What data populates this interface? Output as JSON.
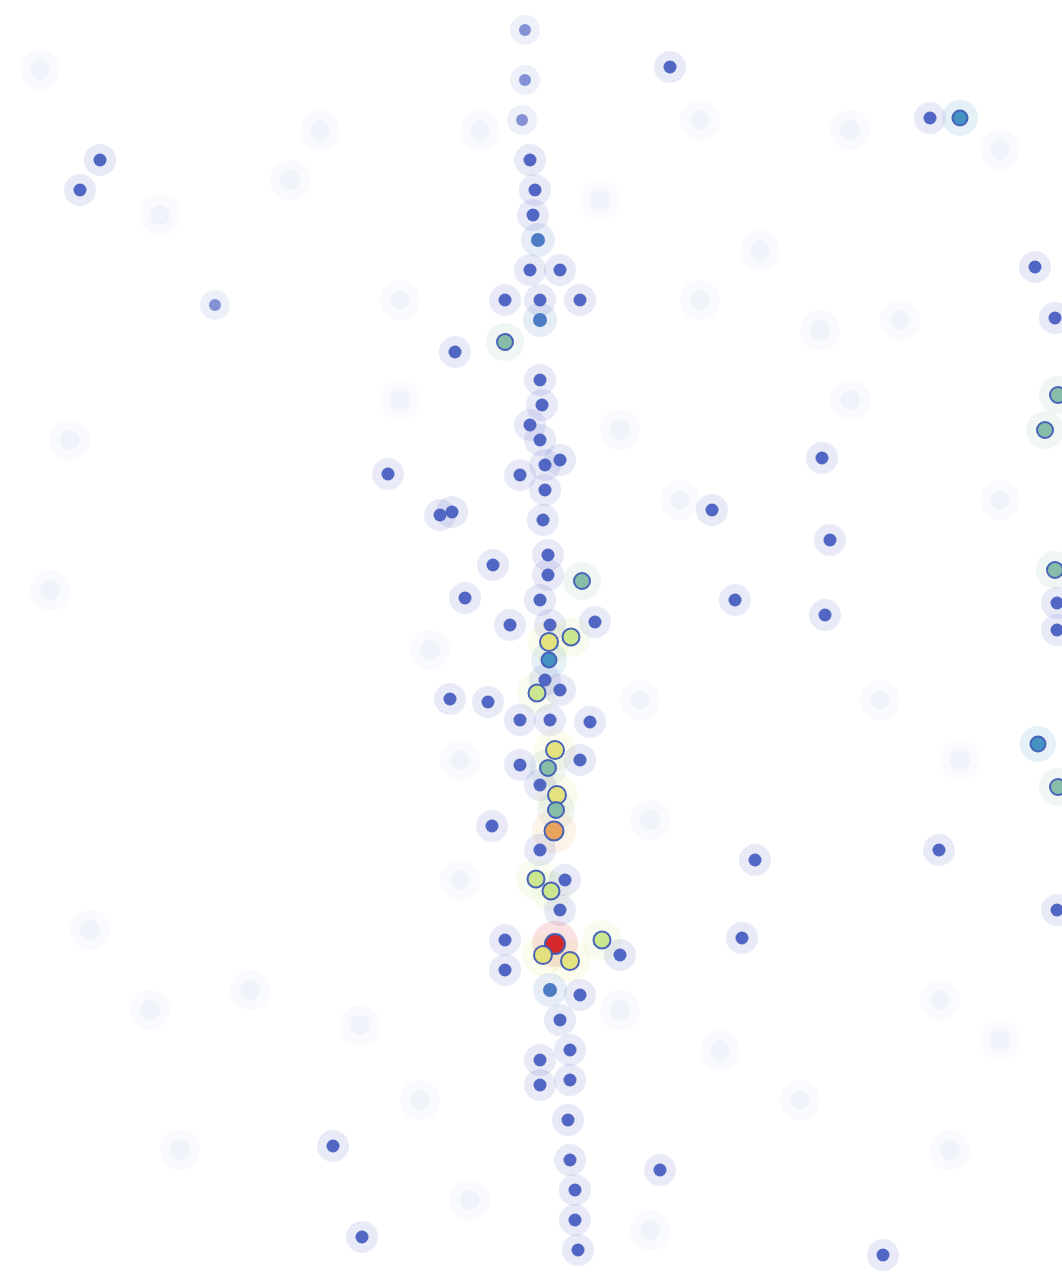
{
  "chart_data": {
    "type": "scatter",
    "tick_labels": false,
    "grid": false,
    "xlim": [
      0,
      1062
    ],
    "ylim": [
      1275,
      0
    ],
    "color_range": [
      0,
      10
    ],
    "x": [
      525,
      525,
      522,
      530,
      535,
      533,
      538,
      530,
      560,
      580,
      540,
      505,
      540,
      505,
      455,
      540,
      542,
      530,
      540,
      545,
      520,
      560,
      545,
      543,
      548,
      548,
      582,
      540,
      510,
      550,
      595,
      549,
      571,
      549,
      545,
      537,
      560,
      550,
      520,
      590,
      555,
      548,
      520,
      580,
      540,
      557,
      556,
      554,
      540,
      536,
      551,
      565,
      560,
      505,
      555,
      543,
      570,
      602,
      620,
      505,
      550,
      580,
      560,
      570,
      540,
      570,
      540,
      568,
      570,
      575,
      575,
      578,
      670,
      960,
      930,
      100,
      80,
      388,
      452,
      440,
      450,
      488,
      712,
      735,
      822,
      830,
      825,
      1035,
      1055,
      1058,
      1045,
      1055,
      1057,
      1057,
      1038,
      1058,
      939,
      755,
      742,
      333,
      362,
      660,
      883,
      215,
      1057,
      492,
      465,
      493,
      40,
      160,
      320,
      480,
      700,
      850,
      1000,
      760,
      820,
      850,
      620,
      680,
      70,
      50,
      880,
      960,
      150,
      250,
      360,
      940,
      1000,
      800,
      720,
      420,
      460,
      650,
      640,
      460,
      430,
      620,
      470,
      650,
      400,
      700,
      600,
      400,
      90,
      180,
      950,
      1000,
      900,
      290
    ],
    "y": [
      30,
      80,
      120,
      160,
      190,
      215,
      240,
      270,
      270,
      300,
      300,
      300,
      320,
      342,
      352,
      380,
      405,
      425,
      440,
      465,
      475,
      460,
      490,
      520,
      555,
      575,
      581,
      600,
      625,
      625,
      622,
      642,
      637,
      660,
      680,
      693,
      690,
      720,
      720,
      722,
      750,
      768,
      765,
      760,
      785,
      795,
      810,
      831,
      850,
      879,
      891,
      880,
      910,
      940,
      944,
      955,
      961,
      940,
      955,
      970,
      990,
      995,
      1020,
      1050,
      1060,
      1080,
      1085,
      1120,
      1160,
      1190,
      1220,
      1250,
      67,
      118,
      118,
      160,
      190,
      474,
      512,
      515,
      699,
      702,
      510,
      600,
      458,
      540,
      615,
      267,
      318,
      395,
      430,
      570,
      603,
      630,
      744,
      787,
      850,
      860,
      938,
      1146,
      1237,
      1170,
      1255,
      305,
      910,
      826,
      598,
      565,
      70,
      215,
      130,
      130,
      120,
      130,
      150,
      250,
      330,
      400,
      430,
      500,
      440,
      590,
      700,
      760,
      1010,
      990,
      1025,
      1000,
      1040,
      1100,
      1050,
      1100,
      880,
      820,
      700,
      760,
      650,
      1010,
      1200,
      1230,
      400,
      300,
      200,
      300,
      930,
      1150,
      1150,
      500,
      320,
      180
    ],
    "values": [
      2,
      2,
      2,
      3,
      3,
      3,
      4,
      3,
      3,
      3,
      3,
      3,
      4,
      6,
      3,
      3,
      3,
      3,
      3,
      3,
      3,
      3,
      3,
      3,
      3,
      3,
      6,
      3,
      3,
      3,
      3,
      8,
      7,
      5,
      3,
      7,
      3,
      3,
      3,
      3,
      8,
      6,
      3,
      3,
      3,
      8,
      6,
      9,
      3,
      7,
      7,
      3,
      3,
      3,
      10,
      8,
      8,
      7,
      3,
      3,
      4,
      3,
      3,
      3,
      3,
      3,
      3,
      3,
      3,
      3,
      3,
      3,
      3,
      5,
      3,
      3,
      3,
      3,
      3,
      3,
      3,
      3,
      3,
      3,
      3,
      3,
      3,
      3,
      3,
      6,
      6,
      6,
      3,
      3,
      5,
      6,
      3,
      3,
      3,
      3,
      3,
      3,
      3,
      2,
      3,
      3,
      3,
      3,
      1,
      1,
      1,
      1,
      1,
      1,
      1,
      1,
      1,
      1,
      1,
      1,
      1,
      1,
      1,
      1,
      1,
      1,
      1,
      1,
      1,
      1,
      1,
      1,
      1,
      1,
      1,
      1,
      1,
      1,
      1,
      1,
      1,
      1,
      1,
      1,
      1,
      1,
      1,
      1,
      1,
      1
    ]
  }
}
